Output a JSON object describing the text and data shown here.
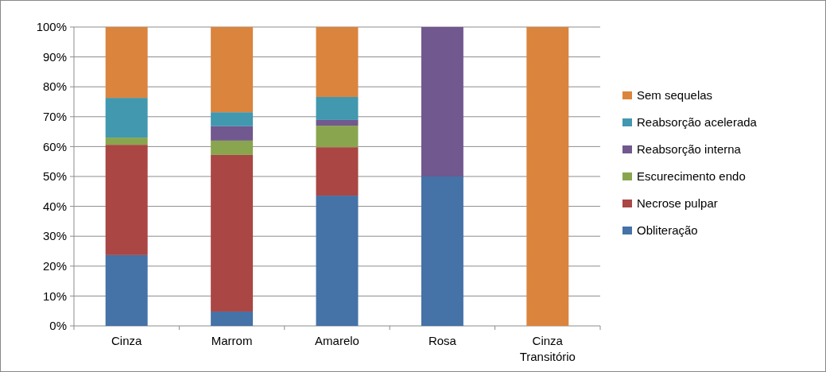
{
  "chart_data": {
    "type": "bar",
    "stacked": true,
    "categories": [
      "Cinza",
      "Marrom",
      "Amarelo",
      "Rosa",
      "Cinza Transitório"
    ],
    "series": [
      {
        "name": "Obliteração",
        "color": "#4572a7",
        "values": [
          23.7,
          4.8,
          43.6,
          50,
          0
        ]
      },
      {
        "name": "Necrose pulpar",
        "color": "#aa4643",
        "values": [
          36.9,
          52.4,
          16.2,
          0,
          0
        ]
      },
      {
        "name": "Escurecimento endo",
        "color": "#89a54e",
        "values": [
          2.4,
          4.8,
          7.2,
          0,
          0
        ]
      },
      {
        "name": "Reabsorção interna",
        "color": "#71588f",
        "values": [
          0,
          4.8,
          1.9,
          50,
          0
        ]
      },
      {
        "name": "Reabsorção acelerada",
        "color": "#4198af",
        "values": [
          13.3,
          4.7,
          7.7,
          0,
          0
        ]
      },
      {
        "name": "Sem sequelas",
        "color": "#db843d",
        "values": [
          23.7,
          28.5,
          23.4,
          0,
          100
        ]
      }
    ],
    "ylim": [
      0,
      100
    ],
    "yticks": [
      {
        "value": 0,
        "label": "0%"
      },
      {
        "value": 10,
        "label": "10%"
      },
      {
        "value": 20,
        "label": "20%"
      },
      {
        "value": 30,
        "label": "30%"
      },
      {
        "value": 40,
        "label": "40%"
      },
      {
        "value": 50,
        "label": "50%"
      },
      {
        "value": 60,
        "label": "60%"
      },
      {
        "value": 70,
        "label": "70%"
      },
      {
        "value": 80,
        "label": "80%"
      },
      {
        "value": 90,
        "label": "90%"
      },
      {
        "value": 100,
        "label": "100%"
      }
    ],
    "grid": "y",
    "legend": "right"
  }
}
